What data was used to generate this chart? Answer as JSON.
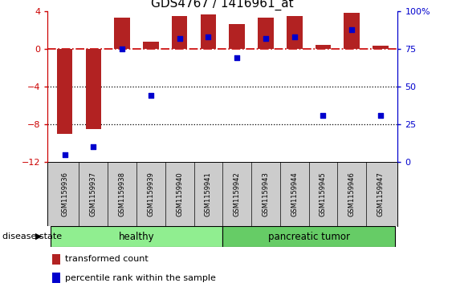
{
  "title": "GDS4767 / 1416961_at",
  "samples": [
    "GSM1159936",
    "GSM1159937",
    "GSM1159938",
    "GSM1159939",
    "GSM1159940",
    "GSM1159941",
    "GSM1159942",
    "GSM1159943",
    "GSM1159944",
    "GSM1159945",
    "GSM1159946",
    "GSM1159947"
  ],
  "transformed_count": [
    -9.0,
    -8.5,
    3.3,
    0.8,
    3.5,
    3.7,
    2.6,
    3.3,
    3.5,
    0.4,
    3.8,
    0.3
  ],
  "percentile_rank": [
    5,
    10,
    75,
    44,
    82,
    83,
    69,
    82,
    83,
    31,
    88,
    31
  ],
  "ylim_left": [
    -12,
    4
  ],
  "ylim_right": [
    0,
    100
  ],
  "yticks_left": [
    -12,
    -8,
    -4,
    0,
    4
  ],
  "yticks_right": [
    0,
    25,
    50,
    75,
    100
  ],
  "bar_color": "#b22222",
  "dot_color": "#0000cd",
  "ref_line_color": "#cc0000",
  "healthy_count": 6,
  "group_labels": [
    "healthy",
    "pancreatic tumor"
  ],
  "healthy_color": "#90EE90",
  "tumor_color": "#66CC66",
  "disease_state_label": "disease state",
  "legend_bar_label": "transformed count",
  "legend_dot_label": "percentile rank within the sample",
  "bg_color": "#ffffff",
  "title_fontsize": 11
}
